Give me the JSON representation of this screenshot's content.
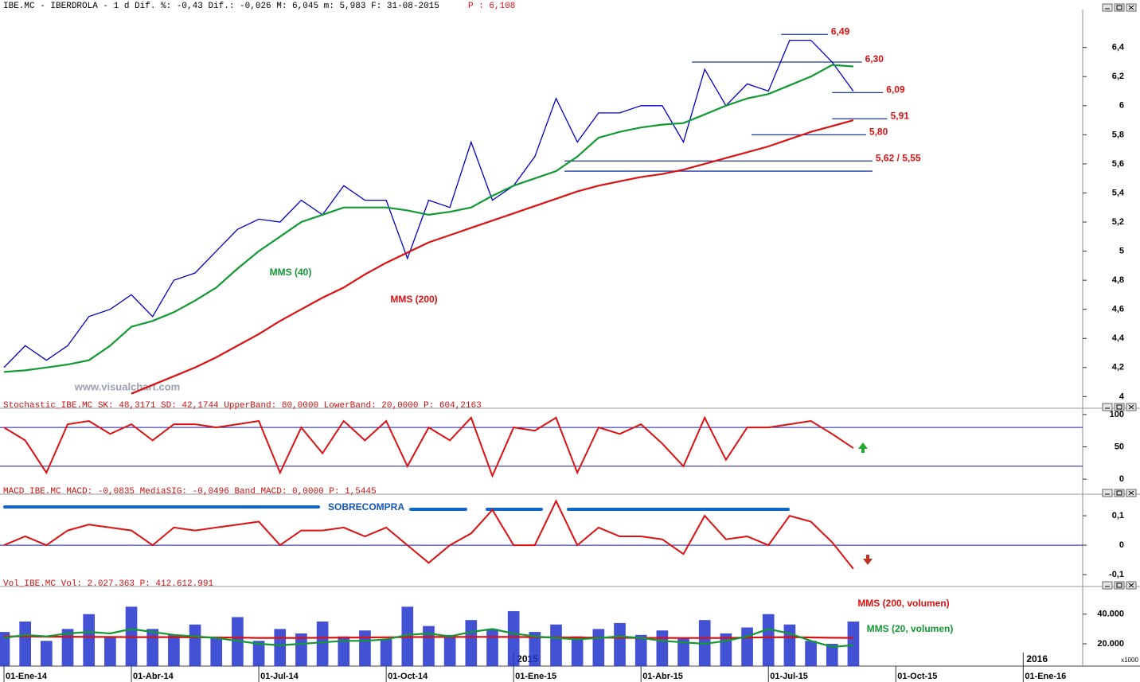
{
  "header": {
    "main": "IBE.MC - IBERDROLA - 1 d Dif. %: -0,43 Dif.: -0,026 M: 6,045 m: 5,983 F: 31-08-2015",
    "price": "P : 6,108",
    "watermark": "www.visualchart.com"
  },
  "time_axis": {
    "x": [
      0,
      0.5,
      1,
      1.5,
      2,
      2.5,
      3,
      3.5,
      4,
      4.5,
      5,
      5.5,
      6,
      6.5,
      7,
      7.5,
      8,
      8.5,
      9,
      9.5,
      10,
      10.5,
      11,
      11.5,
      12,
      12.5,
      13,
      13.5,
      14,
      14.5,
      15,
      15.5,
      16,
      16.5,
      17,
      17.5,
      18,
      18.5,
      19,
      19.5,
      20
    ],
    "xlim": [
      0,
      25.4
    ],
    "xticks": [
      {
        "value": 0,
        "label": "01-Ene-14"
      },
      {
        "value": 3,
        "label": "01-Abr-14"
      },
      {
        "value": 6,
        "label": "01-Jul-14"
      },
      {
        "value": 9,
        "label": "01-Oct-14"
      },
      {
        "value": 12,
        "label": "01-Ene-15"
      },
      {
        "value": 15,
        "label": "01-Abr-15"
      },
      {
        "value": 18,
        "label": "01-Jul-15"
      },
      {
        "value": 21,
        "label": "01-Oct-15"
      },
      {
        "value": 24,
        "label": "01-Ene-16"
      }
    ],
    "year_labels": [
      {
        "value": 12,
        "label": "2015"
      },
      {
        "value": 24,
        "label": "2016"
      }
    ]
  },
  "chart_data": [
    {
      "type": "line",
      "values": [
        4.2,
        4.35,
        4.25,
        4.35,
        4.55,
        4.6,
        4.7,
        4.55,
        4.8,
        4.85,
        5.0,
        5.15,
        5.22,
        5.2,
        5.35,
        5.25,
        5.45,
        5.35,
        5.35,
        4.95,
        5.35,
        5.3,
        5.75,
        5.35,
        5.45,
        5.65,
        6.05,
        5.75,
        5.95,
        5.95,
        6.0,
        6.0,
        5.75,
        6.25,
        6.0,
        6.15,
        6.1,
        6.45,
        6.45,
        6.3,
        6.1
      ],
      "color": "#0000cc",
      "series": [
        {
          "name": "MMS (40)",
          "color": "#119933",
          "values": [
            4.17,
            4.18,
            4.2,
            4.22,
            4.25,
            4.35,
            4.48,
            4.52,
            4.58,
            4.66,
            4.75,
            4.88,
            5.0,
            5.1,
            5.2,
            5.25,
            5.3,
            5.3,
            5.3,
            5.28,
            5.25,
            5.27,
            5.3,
            5.38,
            5.45,
            5.5,
            5.55,
            5.65,
            5.78,
            5.82,
            5.85,
            5.87,
            5.88,
            5.94,
            6.0,
            6.05,
            6.08,
            6.14,
            6.2,
            6.28,
            6.27
          ]
        },
        {
          "name": "MMS (200)",
          "color": "#dd1111",
          "values": [
            null,
            null,
            null,
            null,
            null,
            null,
            4.02,
            4.08,
            4.14,
            4.2,
            4.27,
            4.35,
            4.43,
            4.52,
            4.6,
            4.68,
            4.75,
            4.84,
            4.92,
            4.99,
            5.06,
            5.11,
            5.16,
            5.21,
            5.26,
            5.31,
            5.36,
            5.41,
            5.45,
            5.48,
            5.51,
            5.53,
            5.56,
            5.6,
            5.64,
            5.68,
            5.72,
            5.77,
            5.82,
            5.86,
            5.9
          ]
        }
      ],
      "levels": [
        {
          "value": 6.49,
          "label": "6,49",
          "x": [
            18.3,
            19.4
          ]
        },
        {
          "value": 6.3,
          "label": "6,30",
          "x": [
            16.2,
            20.2
          ]
        },
        {
          "value": 6.09,
          "label": "6,09",
          "x": [
            19.5,
            20.7
          ]
        },
        {
          "value": 5.91,
          "label": "5,91",
          "x": [
            19.5,
            20.8
          ]
        },
        {
          "value": 5.8,
          "label": "5,80",
          "x": [
            17.6,
            20.3
          ]
        },
        {
          "value": 5.62,
          "label": "5,62 / 5,55",
          "x": [
            13.2,
            20.45
          ]
        },
        {
          "value": 5.55,
          "x": [
            13.2,
            20.45
          ]
        }
      ],
      "ylim": [
        3.98,
        6.65
      ],
      "yticks": [
        4,
        {
          "value": 4.2,
          "label": "4,2"
        },
        {
          "value": 4.4,
          "label": "4,4"
        },
        {
          "value": 4.6,
          "label": "4,6"
        },
        {
          "value": 4.8,
          "label": "4,8"
        },
        5,
        {
          "value": 5.2,
          "label": "5,2"
        },
        {
          "value": 5.4,
          "label": "5,4"
        },
        {
          "value": 5.6,
          "label": "5,6"
        },
        {
          "value": 5.8,
          "label": "5,8"
        },
        6,
        {
          "value": 6.2,
          "label": "6,2"
        },
        {
          "value": 6.4,
          "label": "6,4"
        }
      ]
    },
    {
      "type": "line",
      "title": "Stochastic_IBE.MC SK: 48,3171 SD: 42,1744 UpperBand: 80,0000 LowerBand: 20,0000 P: 604,2163",
      "values": [
        80,
        60,
        10,
        85,
        90,
        70,
        85,
        60,
        85,
        85,
        80,
        85,
        90,
        10,
        80,
        40,
        90,
        60,
        90,
        20,
        80,
        60,
        95,
        5,
        80,
        75,
        95,
        10,
        80,
        70,
        85,
        55,
        20,
        95,
        30,
        80,
        80,
        85,
        90,
        70,
        48
      ],
      "color": "#dd1111",
      "bands": [
        80,
        20
      ],
      "ylim": [
        -6,
        106
      ],
      "yticks": [
        0,
        50,
        100
      ]
    },
    {
      "type": "line",
      "title": "MACD_IBE.MC MACD: -0,0835 MediaSIG: -0,0496 Band_MACD: 0,0000 P: 1,5445",
      "annotation": "SOBRECOMPRA",
      "values": [
        0.0,
        0.03,
        0.0,
        0.05,
        0.07,
        0.06,
        0.05,
        0.0,
        0.06,
        0.05,
        0.06,
        0.07,
        0.08,
        0.0,
        0.05,
        0.05,
        0.06,
        0.03,
        0.06,
        0.0,
        -0.06,
        0.0,
        0.04,
        0.12,
        0.0,
        0.0,
        0.15,
        0.0,
        0.06,
        0.03,
        0.03,
        0.02,
        -0.03,
        0.1,
        0.02,
        0.03,
        0.0,
        0.1,
        0.08,
        0.01,
        -0.08
      ],
      "color": "#dd1111",
      "bands": [
        0
      ],
      "ylim": [
        -0.116,
        0.165
      ],
      "yticks": [
        {
          "value": -0.1,
          "label": "-0,1"
        },
        0,
        {
          "value": 0.1,
          "label": "0,1"
        }
      ]
    },
    {
      "type": "bar",
      "title": "Vol_IBE.MC Vol: 2.027.363 P: 412.612.991",
      "unit_label": "x1000",
      "values": [
        28000,
        35000,
        22000,
        30000,
        40000,
        25000,
        45000,
        30000,
        26000,
        33000,
        24000,
        38000,
        22000,
        30000,
        27000,
        35000,
        25000,
        29000,
        23000,
        45000,
        32000,
        26000,
        36000,
        30000,
        42000,
        28000,
        33000,
        25000,
        30000,
        34000,
        26000,
        29000,
        24000,
        36000,
        27000,
        31000,
        40000,
        33000,
        22000,
        20000,
        35000
      ],
      "color": "#2233cc",
      "series": [
        {
          "name": "MMS (200, volumen)",
          "color": "#dd1111",
          "values": [
            25000,
            25000,
            24800,
            24800,
            24600,
            24600,
            24500,
            24500,
            24500,
            24400,
            24300,
            24200,
            24000,
            24000,
            24000,
            24100,
            24200,
            24300,
            24400,
            24500,
            24600,
            24600,
            24700,
            24700,
            24600,
            24500,
            24400,
            24300,
            24200,
            24100,
            24000,
            24000,
            23900,
            23900,
            24000,
            24200,
            24400,
            24500,
            24300,
            24100,
            24000
          ]
        },
        {
          "name": "MMS (20, volumen)",
          "color": "#119933",
          "values": [
            24000,
            26000,
            25000,
            27000,
            28000,
            27000,
            30000,
            28000,
            26000,
            25000,
            24000,
            22000,
            20000,
            19000,
            20000,
            21000,
            22000,
            22000,
            23000,
            26000,
            27000,
            25000,
            28000,
            30000,
            27000,
            25000,
            24000,
            23000,
            24000,
            25000,
            24000,
            22000,
            21000,
            20000,
            22000,
            25000,
            30000,
            27000,
            22000,
            18000,
            19000
          ]
        }
      ],
      "ylim": [
        5000,
        57000
      ],
      "yticks": [
        {
          "value": 20000,
          "label": "20.000"
        },
        {
          "value": 40000,
          "label": "40.000"
        }
      ]
    }
  ]
}
